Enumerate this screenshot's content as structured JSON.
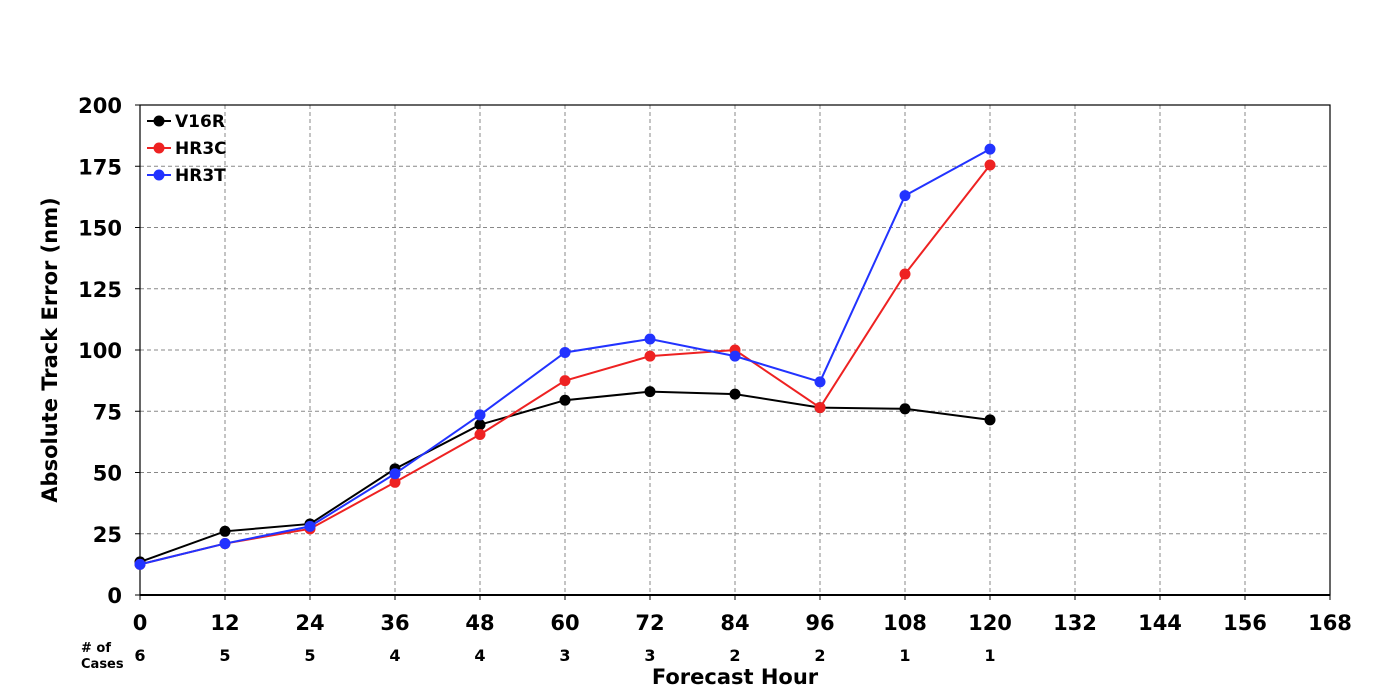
{
  "chart_data": {
    "type": "line",
    "title": "",
    "xlabel": "Forecast Hour",
    "ylabel": "Absolute Track Error (nm)",
    "xlim": [
      0,
      168
    ],
    "ylim": [
      0,
      200
    ],
    "xticks": [
      0,
      12,
      24,
      36,
      48,
      60,
      72,
      84,
      96,
      108,
      120,
      132,
      144,
      156,
      168
    ],
    "yticks": [
      0,
      25,
      50,
      75,
      100,
      125,
      150,
      175,
      200
    ],
    "grid": true,
    "legend_position": "top-left",
    "x": [
      0,
      12,
      24,
      36,
      48,
      60,
      72,
      84,
      96,
      108,
      120
    ],
    "series": [
      {
        "name": "V16R",
        "color": "#000000",
        "values": [
          13.5,
          26,
          29,
          51.5,
          69.5,
          79.5,
          83,
          82,
          76.5,
          76,
          71.5
        ]
      },
      {
        "name": "HR3C",
        "color": "#ee2222",
        "values": [
          12.5,
          21,
          27,
          46,
          65.5,
          87.5,
          97.5,
          100,
          76.5,
          131,
          175.5
        ]
      },
      {
        "name": "HR3T",
        "color": "#2233ff",
        "values": [
          12.5,
          21,
          28,
          49.5,
          73.5,
          99,
          104.5,
          97.5,
          87,
          163,
          182
        ]
      }
    ],
    "cases": {
      "label_line1": "# of",
      "label_line2": "Cases",
      "x": [
        0,
        12,
        24,
        36,
        48,
        60,
        72,
        84,
        96,
        108,
        120
      ],
      "values": [
        "6",
        "5",
        "5",
        "4",
        "4",
        "3",
        "3",
        "2",
        "2",
        "1",
        "1"
      ]
    }
  }
}
